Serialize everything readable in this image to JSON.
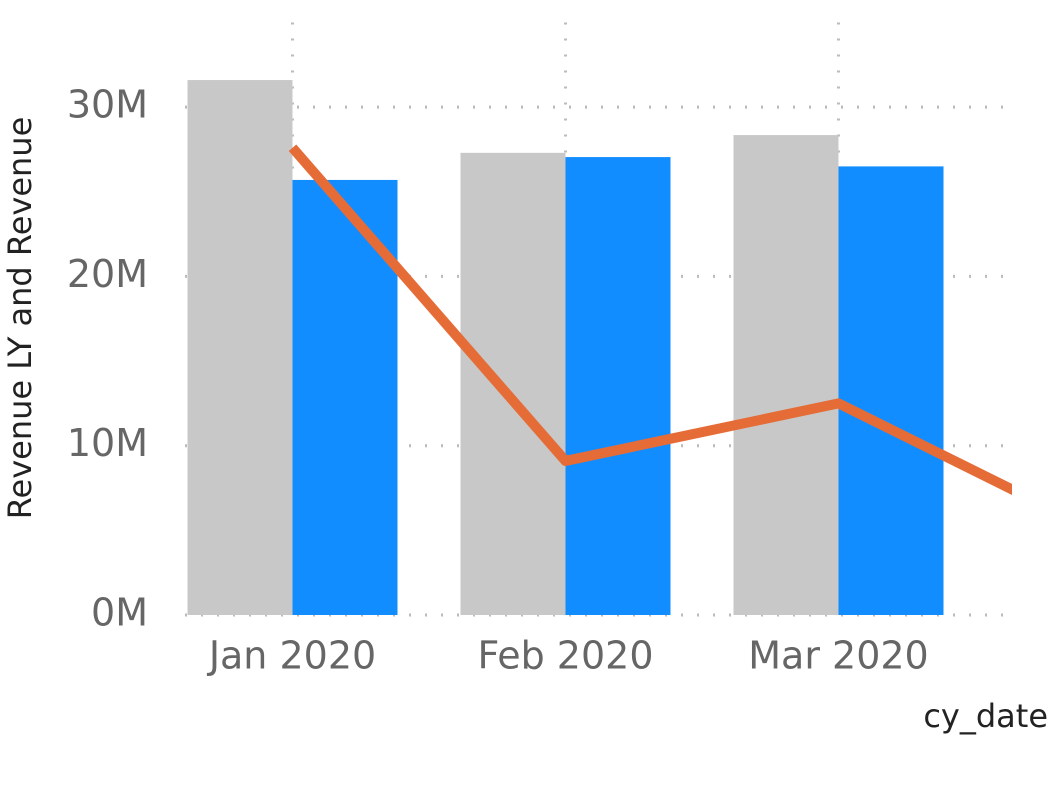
{
  "chart_data": {
    "type": "combo",
    "y_axis_label": "Revenue LY and Revenue",
    "x_axis_label": "cy_date",
    "categories": [
      "Jan 2020",
      "Feb 2020",
      "Mar 2020",
      null
    ],
    "series": [
      {
        "type": "bar",
        "color": "#c8c8c8",
        "values": [
          31600000,
          27300000,
          28350000,
          null
        ]
      },
      {
        "type": "bar",
        "color": "#118dff",
        "values": [
          25700000,
          27050000,
          26500000,
          null
        ]
      },
      {
        "type": "line",
        "color": "#e66c37",
        "values": [
          27600000,
          9100000,
          12500000,
          4500000
        ]
      }
    ],
    "ylim": [
      0,
      35000000
    ],
    "yticks": [
      {
        "value": 0,
        "label": "0M"
      },
      {
        "value": 10000000,
        "label": "10M"
      },
      {
        "value": 20000000,
        "label": "20M"
      },
      {
        "value": 30000000,
        "label": "30M"
      }
    ],
    "grid": true
  }
}
